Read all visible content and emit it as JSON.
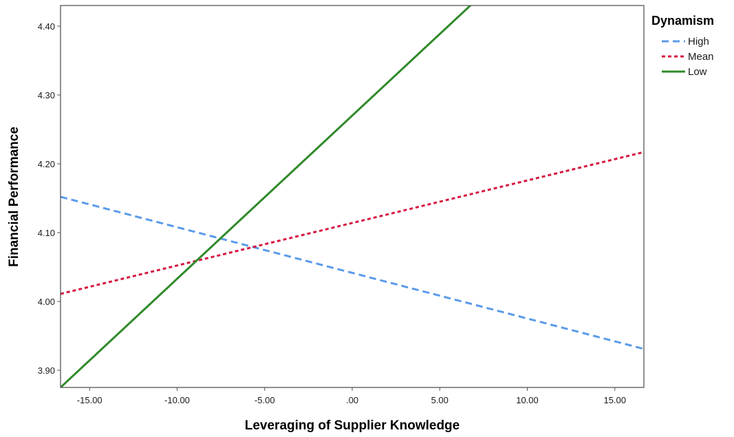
{
  "chart_data": {
    "type": "line",
    "title": "",
    "xlabel": "Leveraging of Supplier Knowledge",
    "ylabel": "Financial Performance",
    "xlim": [
      -16.66,
      16.66
    ],
    "ylim": [
      3.875,
      4.43
    ],
    "x_ticks": [
      -15,
      -10,
      -5,
      0,
      5,
      10,
      15
    ],
    "x_tick_labels": [
      "-15.00",
      "-10.00",
      "-5.00",
      ".00",
      "5.00",
      "10.00",
      "15.00"
    ],
    "y_ticks": [
      3.9,
      4.0,
      4.1,
      4.2,
      4.3,
      4.4
    ],
    "y_tick_labels": [
      "3.90",
      "4.00",
      "4.10",
      "4.20",
      "4.30",
      "4.40"
    ],
    "grid": false,
    "legend": {
      "title": "Dynamism",
      "placement": "right"
    },
    "series": [
      {
        "name": "High",
        "color": "#5b9bea",
        "dash": "dashed",
        "x": [
          -16.66,
          16.66
        ],
        "y": [
          4.152,
          3.931
        ]
      },
      {
        "name": "Mean",
        "color": "#d6173f",
        "dash": "dotted",
        "x": [
          -16.66,
          16.66
        ],
        "y": [
          4.011,
          4.217
        ]
      },
      {
        "name": "Low",
        "color": "#2f8a2a",
        "dash": "solid",
        "x": [
          -16.66,
          16.66
        ],
        "y": [
          3.875,
          4.665
        ]
      }
    ]
  }
}
